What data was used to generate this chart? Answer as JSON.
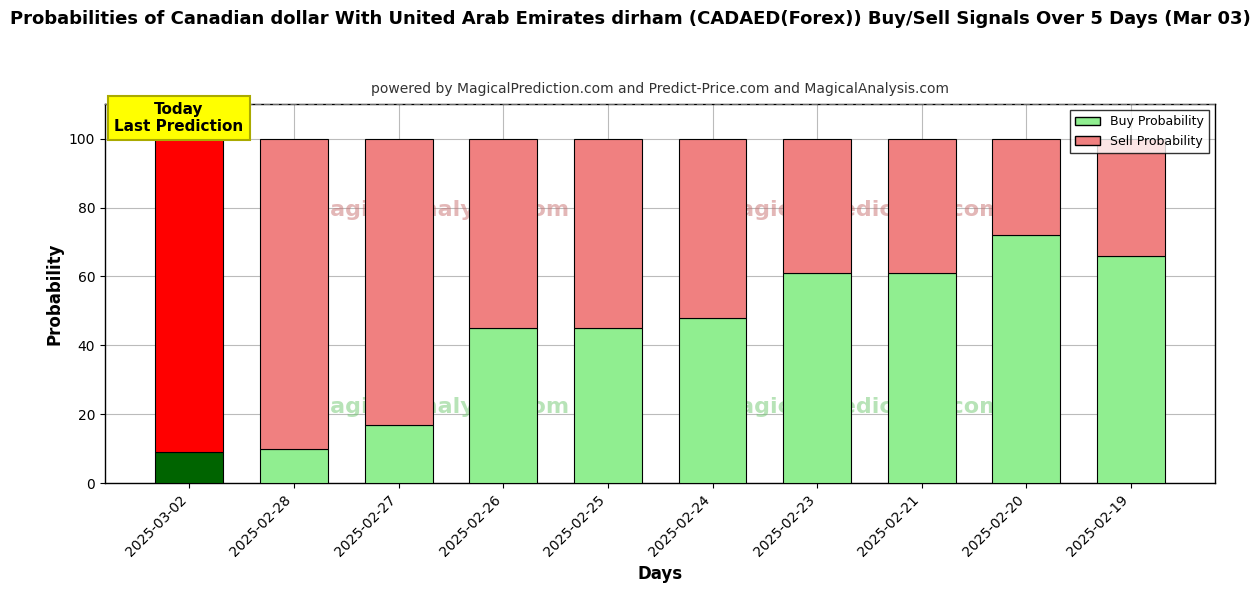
{
  "title": "Probabilities of Canadian dollar With United Arab Emirates dirham (CADAED(Forex)) Buy/Sell Signals Over 5 Days (Mar 03)",
  "subtitle": "powered by MagicalPrediction.com and Predict-Price.com and MagicalAnalysis.com",
  "xlabel": "Days",
  "ylabel": "Probability",
  "categories": [
    "2025-03-02",
    "2025-02-28",
    "2025-02-27",
    "2025-02-26",
    "2025-02-25",
    "2025-02-24",
    "2025-02-23",
    "2025-02-21",
    "2025-02-20",
    "2025-02-19"
  ],
  "buy_values": [
    9,
    10,
    17,
    45,
    45,
    48,
    61,
    61,
    72,
    66
  ],
  "sell_values": [
    91,
    90,
    83,
    55,
    55,
    52,
    39,
    39,
    28,
    34
  ],
  "buy_color_today": "#006400",
  "sell_color_today": "#ff0000",
  "buy_color_normal": "#90EE90",
  "sell_color_normal": "#f08080",
  "today_label": "Today\nLast Prediction",
  "today_label_bg": "#ffff00",
  "today_label_color": "#000000",
  "ylim_max": 110,
  "yticks": [
    0,
    20,
    40,
    60,
    80,
    100
  ],
  "dashed_line_y": 110,
  "legend_buy": "Buy Probability",
  "legend_sell": "Sell Probability",
  "bar_edge_color": "#000000",
  "bar_width": 0.65,
  "grid_color": "#bbbbbb",
  "bg_color": "#ffffff",
  "title_fontsize": 13,
  "subtitle_fontsize": 10,
  "axis_label_fontsize": 12,
  "tick_fontsize": 10,
  "wm1_text": "MagicalAnalysis.com",
  "wm2_text": "MagicalPrediction.com",
  "wm3_text": "MagicalAnalysis.com",
  "wm4_text": "MagicalPrediction.com"
}
